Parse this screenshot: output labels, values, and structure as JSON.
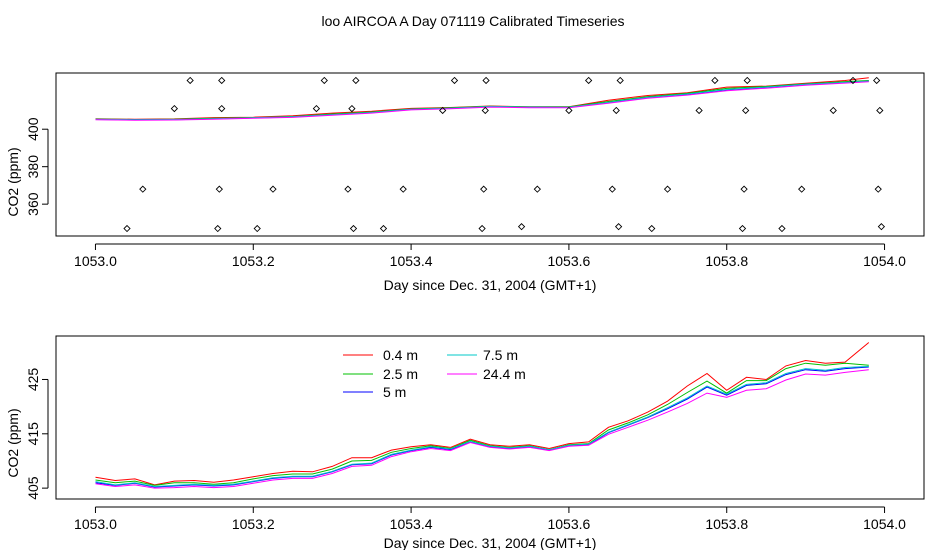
{
  "title": "loo AIRCOA A  Day 071119  Calibrated Timeseries",
  "chart_data": [
    {
      "type": "line",
      "xlabel": "Day since Dec. 31, 2004 (GMT+1)",
      "ylabel": "CO2 (ppm)",
      "xlim": [
        1052.95,
        1054.05
      ],
      "ylim": [
        343,
        430
      ],
      "xticks": [
        "1053.0",
        "1053.2",
        "1053.4",
        "1053.6",
        "1053.8",
        "1054.0"
      ],
      "yticks": [
        "360",
        "380",
        "400"
      ],
      "grid": false,
      "x": [
        1053.0,
        1053.05,
        1053.1,
        1053.15,
        1053.2,
        1053.25,
        1053.3,
        1053.35,
        1053.4,
        1053.45,
        1053.5,
        1053.55,
        1053.6,
        1053.65,
        1053.7,
        1053.75,
        1053.8,
        1053.85,
        1053.9,
        1053.95,
        1053.98
      ],
      "series": [
        {
          "name": "0.4 m",
          "color": "#ff0000",
          "values": [
            405.6,
            405.3,
            405.5,
            406.2,
            406.4,
            407.2,
            408.6,
            409.6,
            411.1,
            411.6,
            412.4,
            412.0,
            412.0,
            415.5,
            418.0,
            419.5,
            422.5,
            423.0,
            424.5,
            426.0,
            427.5
          ]
        },
        {
          "name": "2.5 m",
          "color": "#00c000",
          "values": [
            405.4,
            405.2,
            405.3,
            405.8,
            406.2,
            406.8,
            408.1,
            409.2,
            410.8,
            411.4,
            412.2,
            411.9,
            411.9,
            414.8,
            417.4,
            419.1,
            421.8,
            422.8,
            424.2,
            425.4,
            426.0
          ]
        },
        {
          "name": "5 m",
          "color": "#0000ff",
          "values": [
            405.2,
            405.0,
            405.1,
            405.5,
            406.0,
            406.5,
            407.7,
            408.8,
            410.5,
            411.1,
            412.0,
            411.7,
            411.6,
            414.2,
            416.9,
            418.6,
            421.0,
            422.3,
            423.9,
            424.9,
            425.6
          ]
        },
        {
          "name": "7.5 m",
          "color": "#00c8c8",
          "values": [
            405.3,
            405.1,
            405.2,
            405.6,
            406.1,
            406.6,
            407.8,
            408.9,
            410.6,
            411.2,
            412.1,
            411.8,
            411.7,
            414.3,
            417.0,
            418.8,
            421.2,
            422.5,
            424.0,
            425.0,
            425.7
          ]
        },
        {
          "name": "24.4 m",
          "color": "#ff00ff",
          "values": [
            405.0,
            404.8,
            404.9,
            405.3,
            405.8,
            406.3,
            407.5,
            408.6,
            410.3,
            410.9,
            411.8,
            411.5,
            411.4,
            413.9,
            416.5,
            418.2,
            420.5,
            421.9,
            423.5,
            424.6,
            425.3
          ]
        }
      ],
      "markers": {
        "x": [
          1053.04,
          1053.06,
          1053.1,
          1053.12,
          1053.155,
          1053.157,
          1053.16,
          1053.16,
          1053.205,
          1053.225,
          1053.28,
          1053.29,
          1053.32,
          1053.325,
          1053.327,
          1053.33,
          1053.365,
          1053.39,
          1053.44,
          1053.455,
          1053.49,
          1053.492,
          1053.494,
          1053.495,
          1053.54,
          1053.56,
          1053.6,
          1053.625,
          1053.655,
          1053.66,
          1053.663,
          1053.665,
          1053.705,
          1053.725,
          1053.765,
          1053.785,
          1053.82,
          1053.822,
          1053.824,
          1053.826,
          1053.87,
          1053.895,
          1053.935,
          1053.96,
          1053.99,
          1053.992,
          1053.994,
          1053.996
        ],
        "y": [
          347,
          368,
          411,
          426,
          347,
          368,
          411,
          426,
          347,
          368,
          411,
          426,
          368,
          411,
          347,
          426,
          347,
          368,
          410,
          426,
          347,
          368,
          410,
          426,
          348,
          368,
          410,
          426,
          368,
          410,
          348,
          426,
          347,
          368,
          410,
          426,
          347,
          368,
          410,
          426,
          347,
          368,
          410,
          426,
          426,
          368,
          410,
          348
        ]
      }
    },
    {
      "type": "line",
      "xlabel": "Day since Dec. 31, 2004 (GMT+1)",
      "ylabel": "CO2 (ppm)",
      "xlim": [
        1052.95,
        1054.05
      ],
      "ylim": [
        403,
        433
      ],
      "xticks": [
        "1053.0",
        "1053.2",
        "1053.4",
        "1053.6",
        "1053.8",
        "1054.0"
      ],
      "yticks": [
        "405",
        "415",
        "425"
      ],
      "grid": false,
      "legend_position": "top-center",
      "x": [
        1053.0,
        1053.025,
        1053.05,
        1053.075,
        1053.1,
        1053.125,
        1053.15,
        1053.175,
        1053.2,
        1053.225,
        1053.25,
        1053.275,
        1053.3,
        1053.325,
        1053.35,
        1053.375,
        1053.4,
        1053.425,
        1053.45,
        1053.475,
        1053.5,
        1053.525,
        1053.55,
        1053.575,
        1053.6,
        1053.625,
        1053.65,
        1053.675,
        1053.7,
        1053.725,
        1053.75,
        1053.775,
        1053.8,
        1053.825,
        1053.85,
        1053.875,
        1053.9,
        1053.925,
        1053.95,
        1053.98
      ],
      "series": [
        {
          "name": "0.4 m",
          "color": "#ff0000",
          "values": [
            407.0,
            406.4,
            406.7,
            405.6,
            406.3,
            406.4,
            406.1,
            406.5,
            407.1,
            407.7,
            408.1,
            408.0,
            409.0,
            410.6,
            410.6,
            412.0,
            412.6,
            413.0,
            412.5,
            414.0,
            413.0,
            412.7,
            413.0,
            412.3,
            413.2,
            413.5,
            416.2,
            417.4,
            419.0,
            421.0,
            423.8,
            426.1,
            423.0,
            425.4,
            425.0,
            427.5,
            428.5,
            428.0,
            428.2,
            431.8
          ]
        },
        {
          "name": "2.5 m",
          "color": "#00c000",
          "values": [
            406.5,
            406.0,
            406.3,
            405.5,
            406.0,
            406.0,
            405.7,
            406.0,
            406.7,
            407.3,
            407.6,
            407.6,
            408.5,
            410.0,
            410.1,
            411.6,
            412.3,
            412.8,
            412.3,
            413.8,
            412.8,
            412.5,
            412.8,
            412.1,
            413.0,
            413.2,
            415.7,
            417.0,
            418.5,
            420.4,
            422.6,
            424.7,
            422.5,
            424.8,
            424.8,
            427.0,
            428.0,
            427.6,
            428.0,
            427.6
          ]
        },
        {
          "name": "5 m",
          "color": "#0000ff",
          "values": [
            406.0,
            405.5,
            405.9,
            405.2,
            405.4,
            405.6,
            405.4,
            405.6,
            406.2,
            406.8,
            407.1,
            407.1,
            408.0,
            409.3,
            409.5,
            411.1,
            411.9,
            412.5,
            412.1,
            413.5,
            412.6,
            412.3,
            412.6,
            412.0,
            412.8,
            413.0,
            415.2,
            416.6,
            418.0,
            419.6,
            421.4,
            423.6,
            422.1,
            423.9,
            424.2,
            425.9,
            426.8,
            426.5,
            427.0,
            427.3
          ]
        },
        {
          "name": "7.5 m",
          "color": "#00c8c8",
          "values": [
            406.2,
            405.6,
            406.0,
            405.3,
            405.5,
            405.7,
            405.5,
            405.7,
            406.3,
            406.9,
            407.2,
            407.2,
            408.1,
            409.4,
            409.6,
            411.2,
            412.0,
            412.6,
            412.2,
            413.6,
            412.7,
            412.4,
            412.7,
            412.1,
            412.9,
            413.1,
            415.3,
            416.7,
            418.1,
            419.8,
            421.6,
            423.8,
            422.3,
            424.1,
            424.4,
            426.1,
            427.0,
            426.7,
            427.2,
            427.4
          ]
        },
        {
          "name": "24.4 m",
          "color": "#ff00ff",
          "values": [
            405.8,
            405.3,
            405.6,
            405.0,
            405.1,
            405.3,
            405.1,
            405.3,
            405.9,
            406.5,
            406.8,
            406.8,
            407.7,
            409.0,
            409.2,
            410.8,
            411.7,
            412.3,
            411.9,
            413.4,
            412.5,
            412.2,
            412.5,
            411.9,
            412.7,
            412.9,
            414.9,
            416.2,
            417.5,
            419.0,
            420.6,
            422.5,
            421.7,
            423.0,
            423.3,
            424.9,
            426.0,
            425.8,
            426.3,
            426.8
          ]
        }
      ]
    }
  ]
}
